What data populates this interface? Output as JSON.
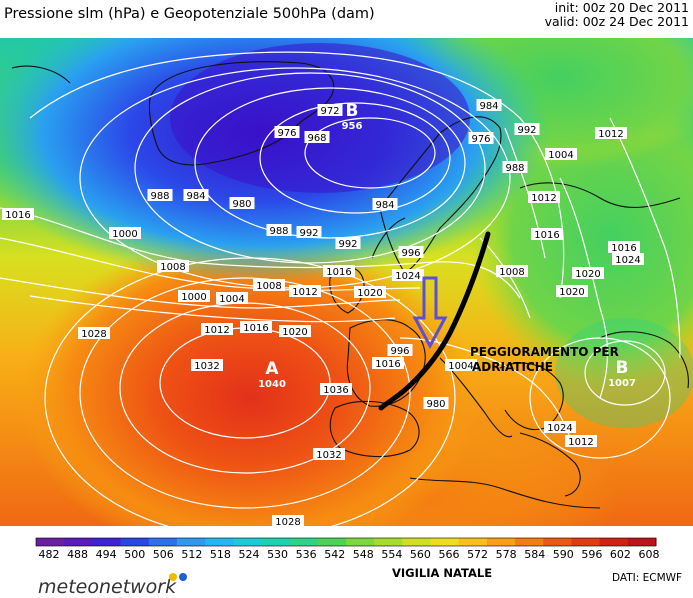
{
  "header": {
    "title": "Pressione slm (hPa) e Geopotenziale 500hPa (dam)",
    "init": "init: 00z 20 Dec 2011",
    "valid": "valid: 00z 24 Dec 2011"
  },
  "map": {
    "annotation": "PEGGIORAMENTO PER ADRIATICHE",
    "centers": [
      {
        "letter": "B",
        "value": "956",
        "color": "#ffffff"
      },
      {
        "letter": "A",
        "value": "1040",
        "color": "#ffffff"
      },
      {
        "letter": "B",
        "value": "1007",
        "color": "#ffffff"
      }
    ],
    "isobar_labels": [
      "976",
      "968",
      "972",
      "984",
      "976",
      "992",
      "1012",
      "1004",
      "988",
      "988",
      "984",
      "980",
      "984",
      "988",
      "992",
      "1000",
      "1008",
      "1016",
      "992",
      "996",
      "1000",
      "1004",
      "1008",
      "1012",
      "1016",
      "1020",
      "1024",
      "1028",
      "1012",
      "1016",
      "1020",
      "1032",
      "1036",
      "1032",
      "1028",
      "1024",
      "1020",
      "1016",
      "1012",
      "1008",
      "1004",
      "996",
      "980",
      "1016",
      "1020",
      "1024",
      "1012",
      "1016"
    ],
    "colors": {
      "low": "#3a10c8",
      "high": "#e8381c",
      "front": "#000000",
      "arrow": "#5a4fd6"
    }
  },
  "colorbar": {
    "ticks": [
      "482",
      "488",
      "494",
      "500",
      "506",
      "512",
      "518",
      "524",
      "530",
      "536",
      "542",
      "548",
      "554",
      "560",
      "566",
      "572",
      "578",
      "584",
      "590",
      "596",
      "602",
      "608"
    ],
    "colors": [
      "#6a1fa0",
      "#5a18c0",
      "#3d22d8",
      "#2845e6",
      "#2c70f0",
      "#2f98f2",
      "#20b8ee",
      "#18ccd6",
      "#1ad2b0",
      "#2bd486",
      "#4cd257",
      "#7cd63c",
      "#a8dc2a",
      "#d0e020",
      "#f0dc1e",
      "#f8c018",
      "#f8a012",
      "#f47c10",
      "#ec5810",
      "#e23a12",
      "#d42014",
      "#c0101c"
    ]
  },
  "footer": {
    "logo": "meteonetwork",
    "caption": "VIGILIA NATALE",
    "credit": "DATI:  ECMWF"
  }
}
